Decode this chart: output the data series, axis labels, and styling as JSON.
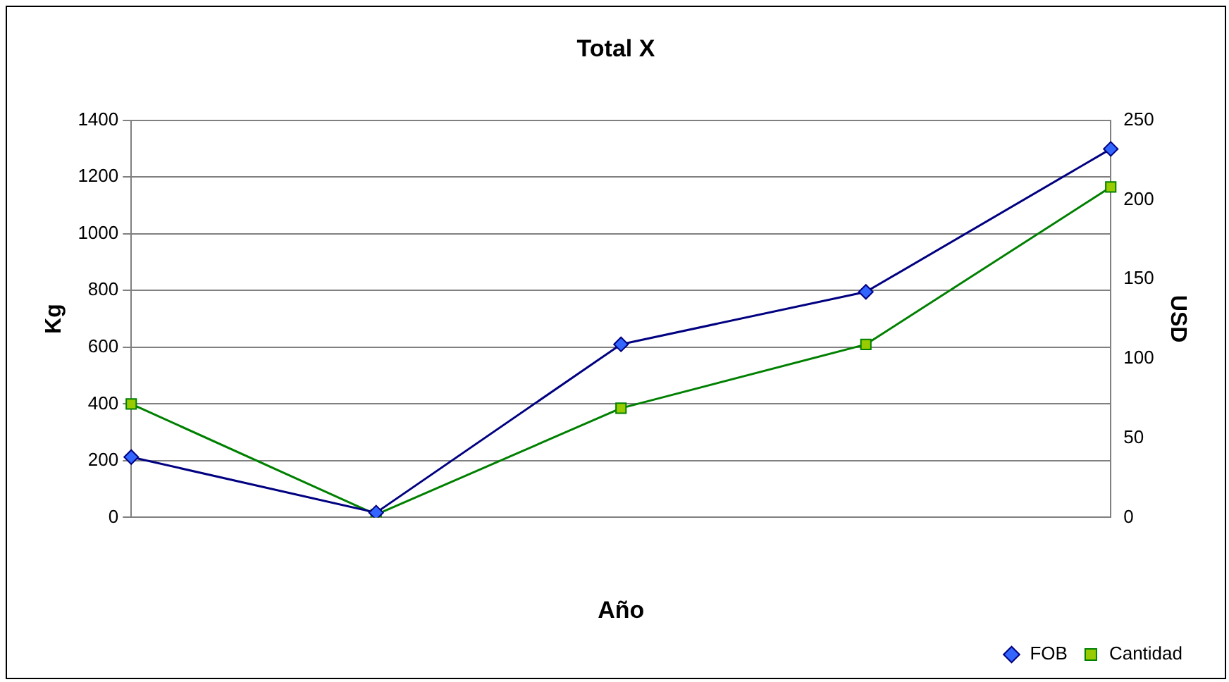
{
  "chart_data": {
    "type": "line",
    "title": "Total X",
    "xlabel": "Año",
    "ylabel": "Kg",
    "y2label": "USD",
    "categories": [
      null,
      null,
      null,
      null,
      null
    ],
    "series": [
      {
        "name": "Cantidad",
        "color": "#008000",
        "marker": "square",
        "values": [
          400,
          10,
          385,
          610,
          1165
        ]
      },
      {
        "name": "FOB",
        "color": "#000080",
        "marker": "diamond",
        "axis": "y2",
        "values": [
          38,
          3,
          109,
          142,
          232
        ]
      }
    ],
    "ylim": [
      0,
      1400
    ],
    "yticks": [
      0,
      200,
      400,
      600,
      800,
      1000,
      1200,
      1400
    ],
    "y2lim": [
      0,
      250
    ],
    "y2ticks": [
      0,
      50,
      100,
      150,
      200,
      250
    ],
    "grid": "y",
    "legend": "bottom right"
  }
}
